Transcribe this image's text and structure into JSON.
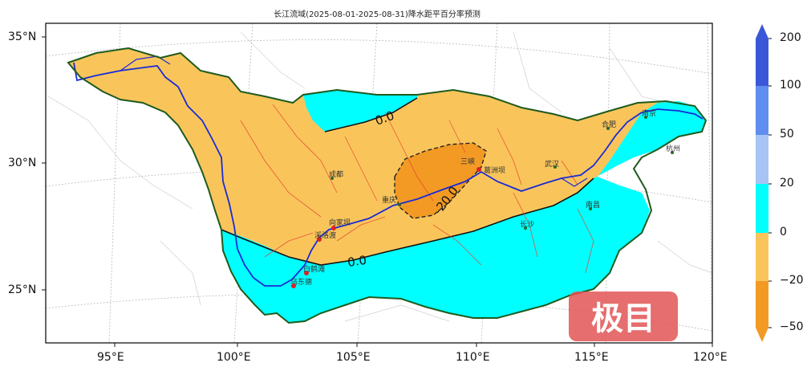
{
  "title": "长江流域(2025-08-01-2025-08-31)降水距平百分率预测",
  "lat_labels": [
    "35°N",
    "30°N",
    "25°N"
  ],
  "lon_labels": [
    "95°E",
    "100°E",
    "105°E",
    "110°E",
    "115°E",
    "120°E"
  ],
  "contour_labels": [
    "0.0",
    "-20.0",
    "0.0"
  ],
  "cities": [
    "成都",
    "三峡",
    "葛洲坝",
    "武汉",
    "合肥",
    "南京",
    "杭州",
    "南昌",
    "长沙",
    "向家坝",
    "溪洛渡",
    "白鹤滩",
    "乌东德",
    "重庆"
  ],
  "colorbar": {
    "ticks": [
      "200",
      "100",
      "50",
      "20",
      "0",
      "−20",
      "−50"
    ],
    "colors": [
      "#3a57d8",
      "#5f8ef0",
      "#a7c4f4",
      "#00ffff",
      "#f9c55b",
      "#f39a24",
      "#f39a24"
    ]
  },
  "watermark": "极目"
}
